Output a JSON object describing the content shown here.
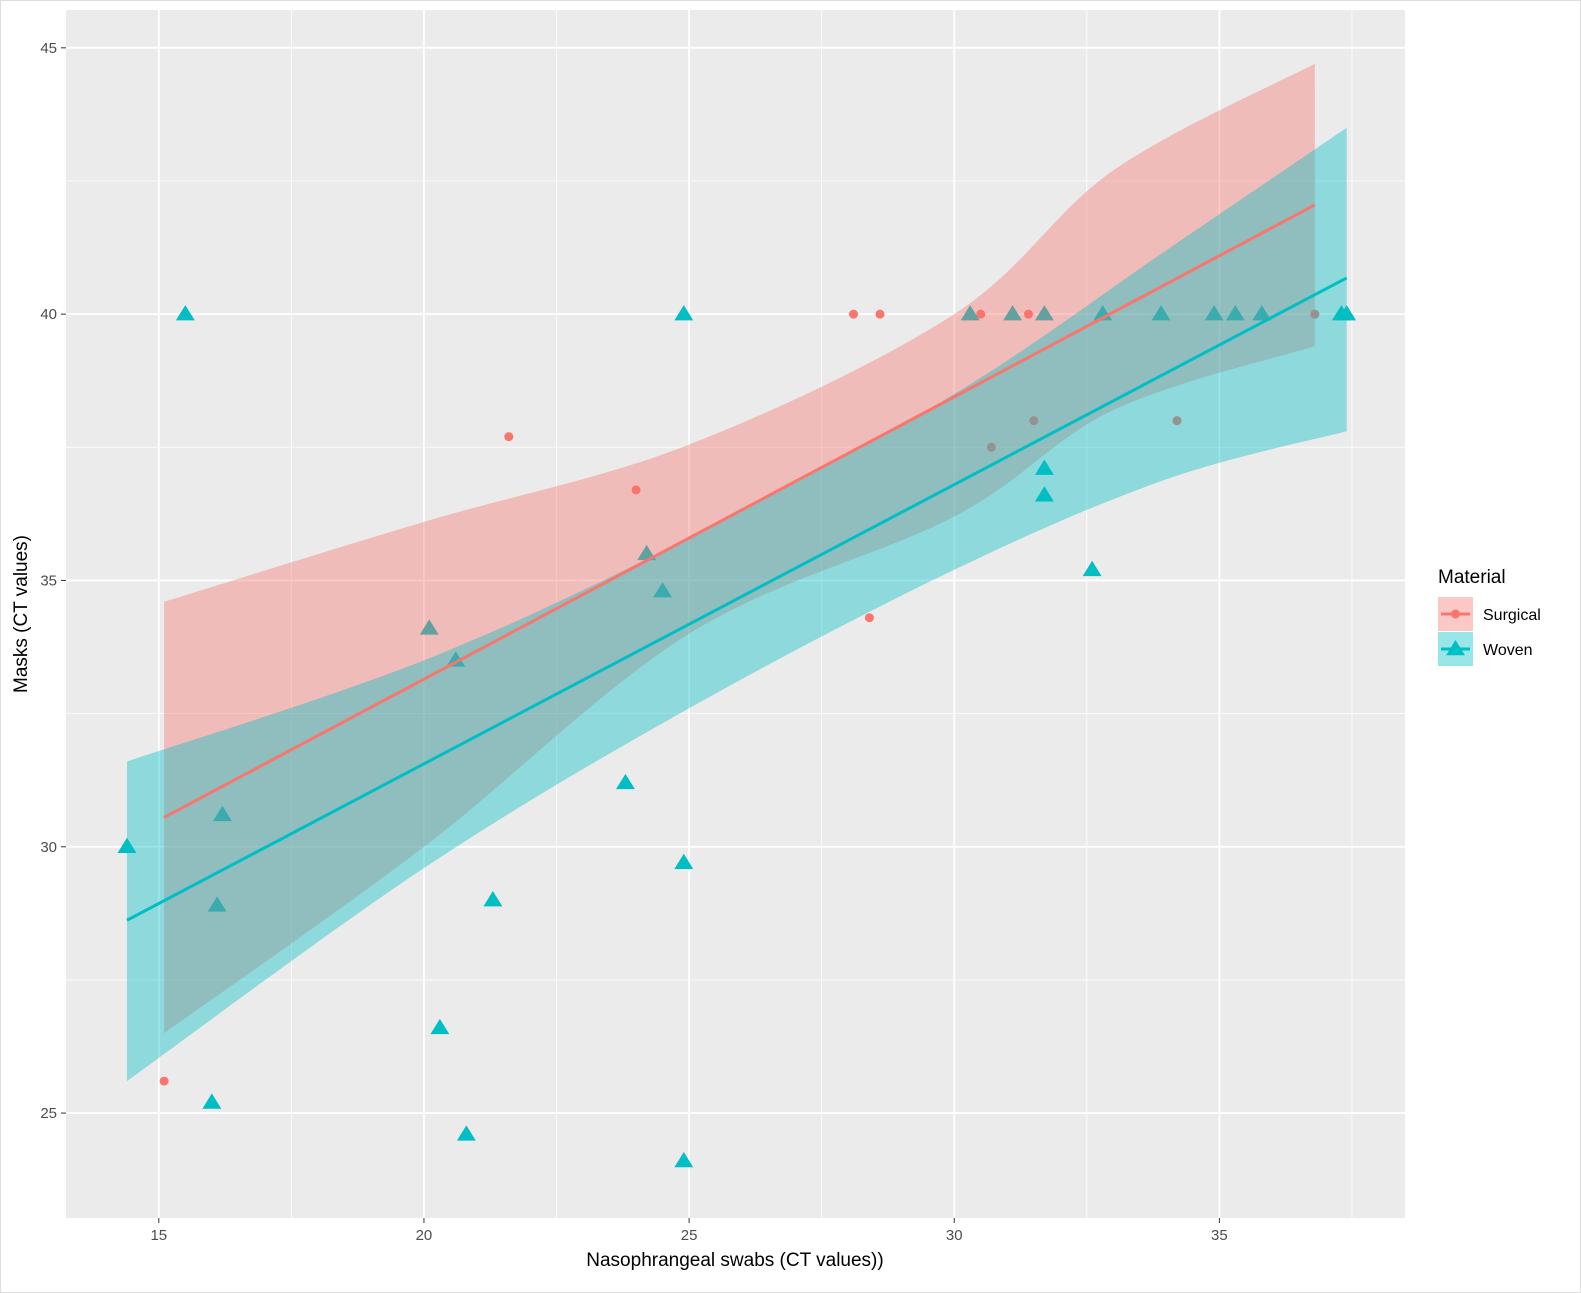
{
  "chart_data": {
    "type": "scatter",
    "title": "",
    "xlabel": "Nasophrangeal swabs (CT values))",
    "ylabel": "Masks (CT values)",
    "xlim": [
      13.25,
      38.5
    ],
    "ylim": [
      23.03,
      45.71
    ],
    "x_ticks": [
      15,
      20,
      25,
      30,
      35
    ],
    "y_ticks": [
      25,
      30,
      35,
      40,
      45
    ],
    "grid": true,
    "background": "#EBEBEB",
    "legend": {
      "title": "Material",
      "placement": "right"
    },
    "series": [
      {
        "name": "Surgical",
        "color": "#F8766D",
        "marker": "circle",
        "points": [
          [
            15.1,
            25.6
          ],
          [
            21.6,
            37.7
          ],
          [
            24.0,
            36.7
          ],
          [
            28.1,
            40
          ],
          [
            28.6,
            40
          ],
          [
            28.4,
            34.3
          ],
          [
            30.5,
            40
          ],
          [
            30.7,
            37.5
          ],
          [
            31.4,
            40
          ],
          [
            31.5,
            38.0
          ],
          [
            31.7,
            40
          ],
          [
            34.2,
            38.0
          ],
          [
            36.8,
            40
          ]
        ],
        "fit_line": [
          [
            15.1,
            30.55
          ],
          [
            36.8,
            42.05
          ]
        ],
        "confidence_band": [
          [
            15.1,
            26.5,
            34.6
          ],
          [
            20,
            30.0,
            36.1
          ],
          [
            25,
            34.0,
            37.55
          ],
          [
            30,
            36.2,
            40.0
          ],
          [
            33,
            38.2,
            42.7
          ],
          [
            36.8,
            39.4,
            44.7
          ]
        ]
      },
      {
        "name": "Woven",
        "color": "#00BFC4",
        "marker": "triangle",
        "points": [
          [
            14.4,
            30.0
          ],
          [
            15.5,
            40
          ],
          [
            16.0,
            25.2
          ],
          [
            16.1,
            28.9
          ],
          [
            16.2,
            30.6
          ],
          [
            20.1,
            34.1
          ],
          [
            20.3,
            26.6
          ],
          [
            20.6,
            33.5
          ],
          [
            20.8,
            24.6
          ],
          [
            21.3,
            29.0
          ],
          [
            23.8,
            31.2
          ],
          [
            24.2,
            35.5
          ],
          [
            24.5,
            34.8
          ],
          [
            24.9,
            40
          ],
          [
            24.9,
            29.7
          ],
          [
            24.9,
            24.1
          ],
          [
            30.3,
            40
          ],
          [
            31.1,
            40
          ],
          [
            31.7,
            40
          ],
          [
            31.7,
            37.1
          ],
          [
            31.7,
            36.6
          ],
          [
            32.6,
            35.2
          ],
          [
            32.8,
            40
          ],
          [
            33.9,
            40
          ],
          [
            34.9,
            40
          ],
          [
            35.3,
            40
          ],
          [
            35.8,
            40
          ],
          [
            37.3,
            40
          ],
          [
            37.4,
            40
          ]
        ],
        "fit_line": [
          [
            14.4,
            28.62
          ],
          [
            37.4,
            40.68
          ]
        ],
        "confidence_band": [
          [
            14.4,
            25.6,
            31.6
          ],
          [
            20,
            29.6,
            33.5
          ],
          [
            25,
            32.6,
            35.8
          ],
          [
            30,
            35.2,
            38.5
          ],
          [
            34,
            36.9,
            41.2
          ],
          [
            37.4,
            37.8,
            43.5
          ]
        ]
      }
    ]
  }
}
